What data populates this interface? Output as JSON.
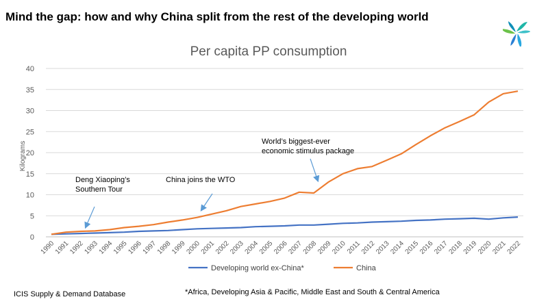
{
  "headline": "Mind the gap: how and why China split from the rest of the developing world",
  "footer": {
    "source": "ICIS Supply & Demand Database",
    "note": "*Africa, Developing Asia & Pacific, Middle East and South & Central America"
  },
  "colors": {
    "developing": "#4472C4",
    "china": "#ED7D31",
    "grid": "#d9d9d9",
    "annotation_arrow": "#5b9bd5"
  },
  "icons": {
    "logo": "icis-logo-icon"
  },
  "chart_data": {
    "type": "line",
    "title": "Per capita PP consumption",
    "xlabel": "",
    "ylabel": "Kilograms",
    "ylim": [
      0,
      40
    ],
    "yticks": [
      0,
      5,
      10,
      15,
      20,
      25,
      30,
      35,
      40
    ],
    "grid": true,
    "legend_position": "bottom",
    "categories": [
      "1990",
      "1991",
      "1992",
      "1993",
      "1994",
      "1995",
      "1996",
      "1997",
      "1998",
      "1999",
      "2000",
      "2001",
      "2002",
      "2003",
      "2004",
      "2005",
      "2006",
      "2007",
      "2008",
      "2009",
      "2010",
      "2011",
      "2012",
      "2013",
      "2014",
      "2015",
      "2016",
      "2017",
      "2018",
      "2019",
      "2020",
      "2021",
      "2022"
    ],
    "series": [
      {
        "name": "Developing world ex-China*",
        "values": [
          0.6,
          0.7,
          0.8,
          0.9,
          1.0,
          1.1,
          1.3,
          1.4,
          1.5,
          1.7,
          1.9,
          2.0,
          2.1,
          2.2,
          2.4,
          2.5,
          2.6,
          2.8,
          2.8,
          3.0,
          3.2,
          3.3,
          3.5,
          3.6,
          3.7,
          3.9,
          4.0,
          4.2,
          4.3,
          4.4,
          4.2,
          4.5,
          4.7
        ]
      },
      {
        "name": "China",
        "values": [
          0.6,
          1.1,
          1.3,
          1.4,
          1.7,
          2.2,
          2.5,
          2.9,
          3.5,
          4.0,
          4.6,
          5.4,
          6.2,
          7.2,
          7.8,
          8.4,
          9.2,
          10.6,
          10.4,
          13.0,
          15.0,
          16.2,
          16.7,
          18.2,
          19.7,
          21.9,
          24.0,
          25.9,
          27.4,
          29.0,
          32.0,
          34.0,
          34.6
        ]
      }
    ],
    "annotations": [
      {
        "lines": [
          "Deng Xiaoping’s",
          "Southern Tour"
        ],
        "year": "1992",
        "value": 1.3
      },
      {
        "lines": [
          "China joins the WTO"
        ],
        "year": "2001",
        "value": 5.4
      },
      {
        "lines": [
          "World’s biggest-ever",
          "economic stimulus package"
        ],
        "year": "2009",
        "value": 13.0
      }
    ]
  }
}
